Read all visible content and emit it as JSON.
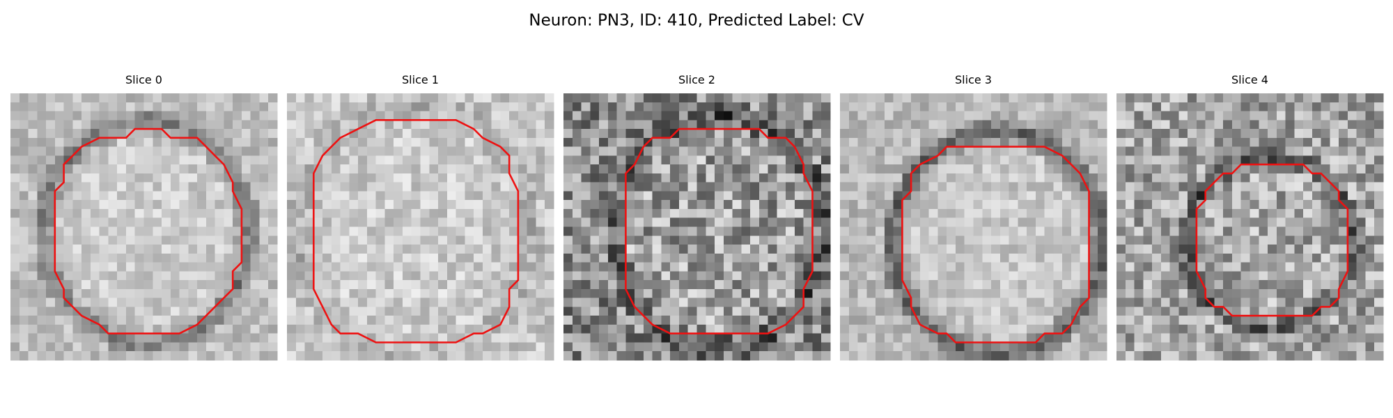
{
  "title": "Neuron: PN3, ID: 410, Predicted Label: CV",
  "panels": [
    {
      "title": "Slice 0"
    },
    {
      "title": "Slice 1"
    },
    {
      "title": "Slice 2"
    },
    {
      "title": "Slice 3"
    },
    {
      "title": "Slice 4"
    }
  ]
}
